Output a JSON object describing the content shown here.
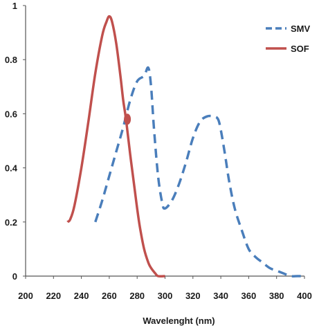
{
  "chart_data": {
    "type": "line",
    "title": "",
    "xlabel": "Wavelenght (nm)",
    "ylabel": "",
    "xlim": [
      200,
      400
    ],
    "ylim": [
      0,
      1
    ],
    "x_ticks": [
      200,
      220,
      240,
      260,
      280,
      300,
      320,
      340,
      360,
      380,
      400
    ],
    "y_ticks": [
      0,
      0.2,
      0.4,
      0.6,
      0.8,
      1
    ],
    "x_tick_labels": [
      "200",
      "220",
      "240",
      "260",
      "280",
      "300",
      "320",
      "340",
      "360",
      "380",
      "400"
    ],
    "y_tick_labels": [
      "0",
      "0.2",
      "0.4",
      "0.6",
      "0.8",
      "1"
    ],
    "grid": false,
    "legend_position": "top-right",
    "intersection_marker": {
      "x": 273,
      "y": 0.58
    },
    "series": [
      {
        "name": "SMV",
        "color": "#4a7ebb",
        "style": "dashed",
        "x": [
          250,
          255,
          260,
          265,
          270,
          275,
          280,
          285,
          288,
          290,
          292,
          295,
          298,
          300,
          305,
          310,
          315,
          320,
          325,
          330,
          335,
          338,
          340,
          343,
          346,
          350,
          355,
          360,
          365,
          370,
          375,
          380,
          385,
          390,
          395,
          400
        ],
        "y": [
          0.2,
          0.28,
          0.37,
          0.46,
          0.55,
          0.65,
          0.72,
          0.74,
          0.77,
          0.7,
          0.55,
          0.37,
          0.27,
          0.25,
          0.28,
          0.34,
          0.42,
          0.51,
          0.57,
          0.59,
          0.59,
          0.58,
          0.54,
          0.45,
          0.35,
          0.25,
          0.17,
          0.1,
          0.07,
          0.05,
          0.03,
          0.02,
          0.01,
          0.0,
          0.0,
          0.0
        ]
      },
      {
        "name": "SOF",
        "color": "#c0504d",
        "style": "solid",
        "x": [
          230,
          232,
          235,
          240,
          245,
          250,
          255,
          258,
          260,
          262,
          265,
          268,
          270,
          272,
          275,
          278,
          280,
          282,
          285,
          288,
          290,
          293,
          295,
          300
        ],
        "y": [
          0.2,
          0.21,
          0.26,
          0.4,
          0.57,
          0.75,
          0.89,
          0.94,
          0.96,
          0.94,
          0.86,
          0.74,
          0.65,
          0.58,
          0.45,
          0.33,
          0.25,
          0.18,
          0.1,
          0.05,
          0.03,
          0.01,
          0.0,
          0.0
        ]
      }
    ]
  }
}
